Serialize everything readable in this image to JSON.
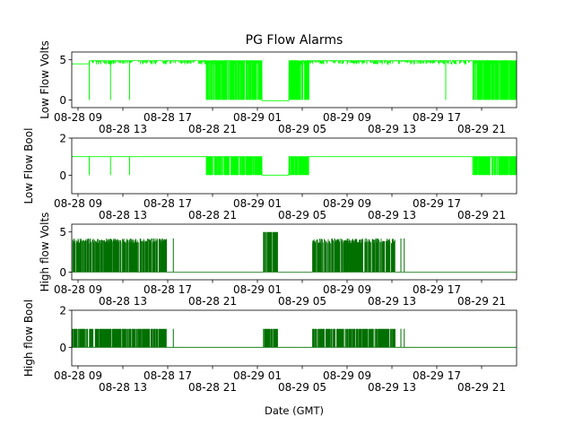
{
  "chart_data": {
    "type": "line",
    "title": "PG Flow Alarms",
    "xlabel": "Date (GMT)",
    "x_units": "hours since 08-28 00:00 GMT",
    "xlim": [
      8.44,
      48.12
    ],
    "x_ticks": [
      {
        "value": 9,
        "label": "08-28 09"
      },
      {
        "value": 13,
        "label": "08-28 13"
      },
      {
        "value": 17,
        "label": "08-28 17"
      },
      {
        "value": 21,
        "label": "08-28 21"
      },
      {
        "value": 25,
        "label": "08-29 01"
      },
      {
        "value": 29,
        "label": "08-29 05"
      },
      {
        "value": 33,
        "label": "08-29 09"
      },
      {
        "value": 37,
        "label": "08-29 13"
      },
      {
        "value": 41,
        "label": "08-29 17"
      },
      {
        "value": 45,
        "label": "08-29 21"
      }
    ],
    "panels": [
      {
        "ylabel": "Low Flow Volts",
        "ylim": [
          -0.96,
          5.97
        ],
        "yticks": [
          "0",
          "5"
        ],
        "yvals": [
          0,
          5
        ],
        "color": "#00ff00",
        "baseline": 4.9,
        "drop_value": 0,
        "single_drops": [
          10.0,
          11.9,
          13.6,
          41.8
        ],
        "dense_bands": [
          [
            20.4,
            25.4
          ],
          [
            27.8,
            29.6
          ],
          [
            44.2,
            48.1
          ]
        ],
        "flat_segments": [
          {
            "range": [
              25.4,
              27.8
            ],
            "value": -0.1
          },
          {
            "range": [
              8.44,
              10.0
            ],
            "value": 4.5
          }
        ]
      },
      {
        "ylabel": "Low Flow Bool",
        "ylim": [
          -1,
          2
        ],
        "yticks": [
          "0",
          "2"
        ],
        "yvals": [
          0,
          2
        ],
        "color": "#00ff00",
        "baseline": 1,
        "drop_value": 0,
        "single_drops": [
          10.0,
          11.9,
          13.6
        ],
        "dense_bands": [
          [
            20.4,
            25.4
          ],
          [
            27.8,
            29.6
          ],
          [
            44.2,
            48.1
          ]
        ],
        "flat_segments": [
          {
            "range": [
              25.4,
              27.8
            ],
            "value": 0
          }
        ]
      },
      {
        "ylabel": "High flow Volts",
        "ylim": [
          -0.96,
          5.97
        ],
        "yticks": [
          "0",
          "5"
        ],
        "yvals": [
          0,
          5
        ],
        "color": "#007000",
        "baseline": 0,
        "spike_value": 4.2,
        "single_spikes": [
          17.5,
          37.8,
          38.1
        ],
        "dense_bands": [
          [
            8.44,
            16.9
          ],
          [
            29.9,
            37.3
          ]
        ],
        "high_bands": [
          {
            "range": [
              25.5,
              26.8
            ],
            "value": 5
          }
        ]
      },
      {
        "ylabel": "High flow Bool",
        "ylim": [
          -1,
          2
        ],
        "yticks": [
          "0",
          "2"
        ],
        "yvals": [
          0,
          2
        ],
        "color": "#007000",
        "baseline": 0,
        "spike_value": 1,
        "single_spikes": [
          17.5,
          37.8,
          38.1
        ],
        "dense_bands": [
          [
            8.44,
            16.9
          ],
          [
            29.9,
            37.3
          ]
        ],
        "high_bands": [
          {
            "range": [
              25.5,
              26.8
            ],
            "value": 1
          }
        ]
      }
    ]
  }
}
